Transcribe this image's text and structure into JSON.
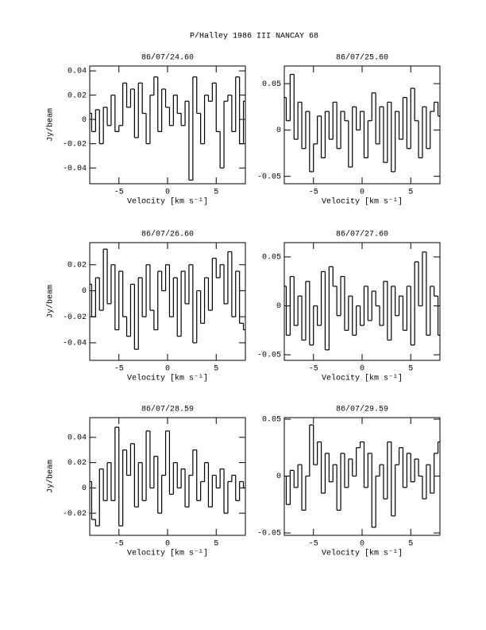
{
  "title": "P/Halley 1986 III   NANCAY      68",
  "chart_data": [
    {
      "type": "step",
      "title": "86/07/24.60",
      "xlabel": "Velocity [km s⁻¹]",
      "ylabel": "Jy/beam",
      "xlim": [
        -8,
        8
      ],
      "xticks": [
        -5,
        0,
        5
      ],
      "ylim": [
        -0.053,
        0.044
      ],
      "yticks": [
        -0.04,
        -0.02,
        0,
        0.02,
        0.04
      ],
      "color": "#000000",
      "x": [
        -8,
        -7.6,
        -7.2,
        -6.8,
        -6.4,
        -6,
        -5.6,
        -5.2,
        -4.8,
        -4.4,
        -4,
        -3.6,
        -3.2,
        -2.8,
        -2.4,
        -2,
        -1.6,
        -1.2,
        -0.8,
        -0.4,
        0,
        0.4,
        0.8,
        1.2,
        1.6,
        2,
        2.4,
        2.8,
        3.2,
        3.6,
        4,
        4.4,
        4.8,
        5.2,
        5.6,
        6,
        6.4,
        6.8,
        7.2,
        7.6,
        8
      ],
      "values": [
        0.005,
        -0.01,
        0.008,
        -0.02,
        0.01,
        -0.005,
        0.02,
        -0.01,
        -0.005,
        0.03,
        0.01,
        0.025,
        -0.015,
        0.03,
        0.005,
        -0.02,
        0.02,
        0.035,
        -0.01,
        0.025,
        0.01,
        -0.005,
        0.02,
        0.005,
        -0.005,
        0.015,
        -0.05,
        0.035,
        0.005,
        -0.02,
        0.02,
        0.015,
        0.03,
        -0.01,
        -0.04,
        0.015,
        0.02,
        -0.01,
        0.035,
        -0.02,
        0.015
      ]
    },
    {
      "type": "step",
      "title": "86/07/25.60",
      "xlabel": "Velocity [km s⁻¹]",
      "xlim": [
        -8,
        8
      ],
      "xticks": [
        -5,
        0,
        5
      ],
      "ylim": [
        -0.058,
        0.069
      ],
      "yticks": [
        -0.05,
        0,
        0.05
      ],
      "color": "#000000",
      "x": [
        -8,
        -7.6,
        -7.2,
        -6.8,
        -6.4,
        -6,
        -5.6,
        -5.2,
        -4.8,
        -4.4,
        -4,
        -3.6,
        -3.2,
        -2.8,
        -2.4,
        -2,
        -1.6,
        -1.2,
        -0.8,
        -0.4,
        0,
        0.4,
        0.8,
        1.2,
        1.6,
        2,
        2.4,
        2.8,
        3.2,
        3.6,
        4,
        4.4,
        4.8,
        5.2,
        5.6,
        6,
        6.4,
        6.8,
        7.2,
        7.6,
        8
      ],
      "values": [
        0.035,
        0.01,
        0.06,
        -0.01,
        0.03,
        -0.02,
        0.02,
        -0.045,
        -0.015,
        0.015,
        -0.03,
        0.02,
        -0.01,
        0.03,
        -0.02,
        0.02,
        0.01,
        -0.04,
        0.025,
        0.0,
        0.02,
        -0.03,
        0.01,
        0.04,
        -0.015,
        0.025,
        -0.035,
        0.03,
        -0.045,
        0.02,
        -0.01,
        0.035,
        -0.02,
        0.045,
        0.01,
        -0.03,
        0.025,
        -0.02,
        0.02,
        0.03,
        0.015
      ]
    },
    {
      "type": "step",
      "title": "86/07/26.60",
      "xlabel": "Velocity [km s⁻¹]",
      "ylabel": "Jy/beam",
      "xlim": [
        -8,
        8
      ],
      "xticks": [
        -5,
        0,
        5
      ],
      "ylim": [
        -0.0535,
        0.037
      ],
      "yticks": [
        -0.04,
        -0.02,
        0,
        0.02
      ],
      "color": "#000000",
      "x": [
        -8,
        -7.6,
        -7.2,
        -6.8,
        -6.4,
        -6,
        -5.6,
        -5.2,
        -4.8,
        -4.4,
        -4,
        -3.6,
        -3.2,
        -2.8,
        -2.4,
        -2,
        -1.6,
        -1.2,
        -0.8,
        -0.4,
        0,
        0.4,
        0.8,
        1.2,
        1.6,
        2,
        2.4,
        2.8,
        3.2,
        3.6,
        4,
        4.4,
        4.8,
        5.2,
        5.6,
        6,
        6.4,
        6.8,
        7.2,
        7.6,
        8
      ],
      "values": [
        0.005,
        -0.02,
        0.01,
        -0.015,
        0.032,
        -0.01,
        0.02,
        -0.03,
        0.015,
        -0.02,
        -0.035,
        0.005,
        -0.045,
        0.01,
        -0.02,
        0.02,
        -0.015,
        -0.03,
        0.015,
        0.0,
        0.02,
        -0.02,
        0.01,
        -0.035,
        0.015,
        -0.01,
        0.02,
        -0.04,
        0.0,
        -0.025,
        0.01,
        -0.015,
        0.025,
        0.01,
        0.02,
        -0.01,
        0.03,
        -0.02,
        0.015,
        -0.025,
        -0.03
      ]
    },
    {
      "type": "step",
      "title": "86/07/27.60",
      "xlabel": "Velocity [km s⁻¹]",
      "xlim": [
        -8,
        8
      ],
      "xticks": [
        -5,
        0,
        5
      ],
      "ylim": [
        -0.0557,
        0.0646
      ],
      "yticks": [
        -0.05,
        0,
        0.05
      ],
      "color": "#000000",
      "x": [
        -8,
        -7.6,
        -7.2,
        -6.8,
        -6.4,
        -6,
        -5.6,
        -5.2,
        -4.8,
        -4.4,
        -4,
        -3.6,
        -3.2,
        -2.8,
        -2.4,
        -2,
        -1.6,
        -1.2,
        -0.8,
        -0.4,
        0,
        0.4,
        0.8,
        1.2,
        1.6,
        2,
        2.4,
        2.8,
        3.2,
        3.6,
        4,
        4.4,
        4.8,
        5.2,
        5.6,
        6,
        6.4,
        6.8,
        7.2,
        7.6,
        8
      ],
      "values": [
        0.02,
        -0.03,
        0.03,
        -0.02,
        0.01,
        -0.035,
        0.025,
        -0.04,
        0.0,
        -0.02,
        0.035,
        -0.045,
        0.04,
        0.02,
        -0.01,
        0.03,
        -0.025,
        0.01,
        -0.03,
        0.0,
        -0.02,
        0.02,
        -0.015,
        0.015,
        0.0,
        -0.02,
        0.025,
        -0.035,
        0.02,
        -0.01,
        0.01,
        -0.025,
        0.02,
        -0.04,
        0.045,
        0.0,
        0.055,
        -0.03,
        0.02,
        0.01,
        -0.03
      ]
    },
    {
      "type": "step",
      "title": "86/07/28.59",
      "xlabel": "Velocity [km s⁻¹]",
      "ylabel": "Jy/beam",
      "xlim": [
        -8,
        8
      ],
      "xticks": [
        -5,
        0,
        5
      ],
      "ylim": [
        -0.0375,
        0.0556
      ],
      "yticks": [
        -0.02,
        0,
        0.02,
        0.04
      ],
      "color": "#000000",
      "x": [
        -8,
        -7.6,
        -7.2,
        -6.8,
        -6.4,
        -6,
        -5.6,
        -5.2,
        -4.8,
        -4.4,
        -4,
        -3.6,
        -3.2,
        -2.8,
        -2.4,
        -2,
        -1.6,
        -1.2,
        -0.8,
        -0.4,
        0,
        0.4,
        0.8,
        1.2,
        1.6,
        2,
        2.4,
        2.8,
        3.2,
        3.6,
        4,
        4.4,
        4.8,
        5.2,
        5.6,
        6,
        6.4,
        6.8,
        7.2,
        7.6,
        8
      ],
      "values": [
        0.005,
        -0.025,
        -0.03,
        0.015,
        -0.01,
        0.02,
        -0.01,
        0.048,
        -0.03,
        0.03,
        0.01,
        0.035,
        -0.015,
        0.02,
        -0.01,
        0.045,
        0.0,
        0.025,
        -0.02,
        0.01,
        0.045,
        -0.005,
        0.02,
        0.0,
        0.015,
        -0.015,
        0.01,
        0.03,
        -0.01,
        0.005,
        0.02,
        -0.015,
        0.01,
        0.0,
        0.015,
        -0.02,
        0.005,
        0.01,
        -0.01,
        0.005,
        0.0
      ]
    },
    {
      "type": "step",
      "title": "86/07/29.59",
      "xlabel": "Velocity [km s⁻¹]",
      "xlim": [
        -8,
        8
      ],
      "xticks": [
        -5,
        0,
        5
      ],
      "ylim": [
        -0.0521,
        0.0514
      ],
      "yticks": [
        -0.05,
        0,
        0.05
      ],
      "color": "#000000",
      "x": [
        -8,
        -7.6,
        -7.2,
        -6.8,
        -6.4,
        -6,
        -5.6,
        -5.2,
        -4.8,
        -4.4,
        -4,
        -3.6,
        -3.2,
        -2.8,
        -2.4,
        -2,
        -1.6,
        -1.2,
        -0.8,
        -0.4,
        0,
        0.4,
        0.8,
        1.2,
        1.6,
        2,
        2.4,
        2.8,
        3.2,
        3.6,
        4,
        4.4,
        4.8,
        5.2,
        5.6,
        6,
        6.4,
        6.8,
        7.2,
        7.6,
        8
      ],
      "values": [
        0.0,
        -0.025,
        0.005,
        -0.01,
        0.01,
        -0.03,
        0.0,
        0.045,
        0.01,
        0.03,
        -0.015,
        0.02,
        -0.005,
        0.01,
        -0.03,
        0.02,
        -0.01,
        0.015,
        0.0,
        0.025,
        0.03,
        -0.01,
        0.02,
        -0.045,
        0.0,
        0.01,
        -0.02,
        0.03,
        -0.035,
        0.01,
        0.025,
        -0.01,
        0.02,
        -0.005,
        0.015,
        0.0,
        -0.02,
        0.01,
        -0.015,
        0.02,
        0.03
      ]
    }
  ]
}
